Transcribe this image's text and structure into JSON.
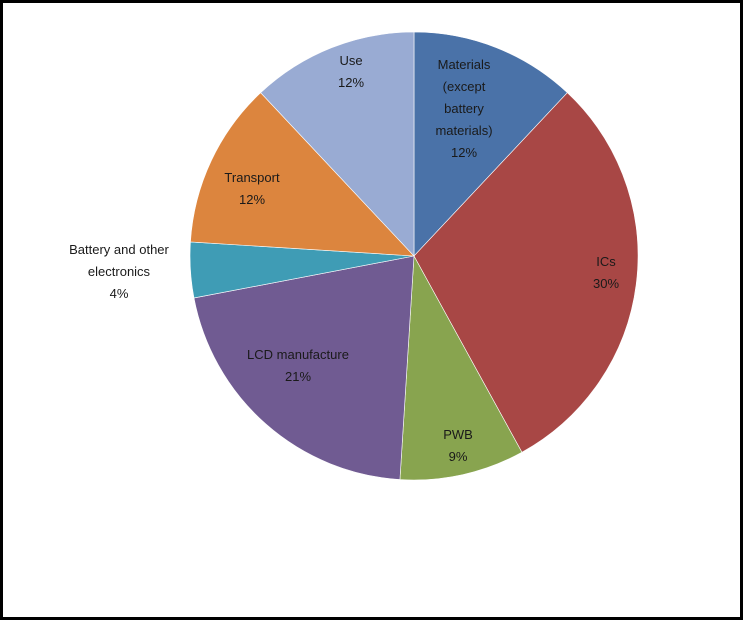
{
  "chart_data": {
    "type": "pie",
    "title": "",
    "start_angle_deg": 0,
    "direction": "clockwise",
    "legend": "none",
    "slices": [
      {
        "lines": [
          "Materials",
          "(except",
          "battery",
          "materials)"
        ],
        "percent_label": "12%",
        "value": 12,
        "color": "#4a72a8"
      },
      {
        "lines": [
          "ICs"
        ],
        "percent_label": "30%",
        "value": 30,
        "color": "#a84745"
      },
      {
        "lines": [
          "PWB"
        ],
        "percent_label": "9%",
        "value": 9,
        "color": "#88a44f"
      },
      {
        "lines": [
          "LCD manufacture"
        ],
        "percent_label": "21%",
        "value": 21,
        "color": "#705b92"
      },
      {
        "lines": [
          "Battery and other",
          "electronics"
        ],
        "percent_label": "4%",
        "value": 4,
        "color": "#3f9cb5"
      },
      {
        "lines": [
          "Transport"
        ],
        "percent_label": "12%",
        "value": 12,
        "color": "#dc853e"
      },
      {
        "lines": [
          "Use"
        ],
        "percent_label": "12%",
        "value": 12,
        "color": "#99abd3"
      }
    ]
  }
}
